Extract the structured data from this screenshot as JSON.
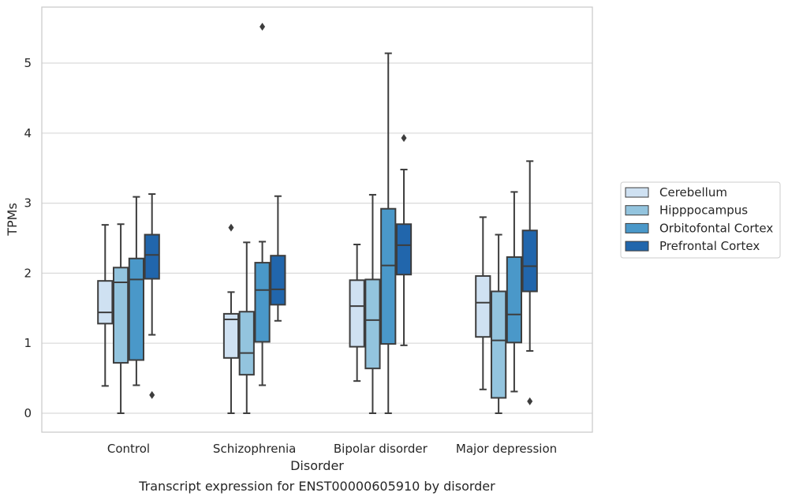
{
  "chart_data": {
    "type": "boxplot",
    "title": "Transcript expression for ENST00000605910 by disorder",
    "xlabel": "Disorder",
    "ylabel": "TPMs",
    "categories": [
      "Control",
      "Schizophrenia",
      "Bipolar disorder",
      "Major depression"
    ],
    "yticks": [
      "0",
      "1",
      "2",
      "3",
      "4",
      "5"
    ],
    "ylim": [
      -0.27,
      5.83
    ],
    "grid": "horizontal",
    "legend_position": "right",
    "series": [
      {
        "name": "Cerebellum",
        "color": "#cfe1f2",
        "boxes": [
          {
            "whisker_low": 0.39,
            "q1": 1.28,
            "median": 1.44,
            "q3": 1.89,
            "whisker_high": 2.69,
            "outliers": []
          },
          {
            "whisker_low": 0.0,
            "q1": 0.79,
            "median": 1.34,
            "q3": 1.42,
            "whisker_high": 1.73,
            "outliers": [
              2.65
            ]
          },
          {
            "whisker_low": 0.46,
            "q1": 0.95,
            "median": 1.53,
            "q3": 1.9,
            "whisker_high": 2.41,
            "outliers": []
          },
          {
            "whisker_low": 0.34,
            "q1": 1.09,
            "median": 1.58,
            "q3": 1.96,
            "whisker_high": 2.8,
            "outliers": []
          }
        ]
      },
      {
        "name": "Hipppocampus",
        "color": "#93c4de",
        "boxes": [
          {
            "whisker_low": 0.0,
            "q1": 0.72,
            "median": 1.87,
            "q3": 2.08,
            "whisker_high": 2.7,
            "outliers": []
          },
          {
            "whisker_low": 0.0,
            "q1": 0.55,
            "median": 0.86,
            "q3": 1.45,
            "whisker_high": 2.44,
            "outliers": []
          },
          {
            "whisker_low": 0.0,
            "q1": 0.64,
            "median": 1.33,
            "q3": 1.91,
            "whisker_high": 3.12,
            "outliers": []
          },
          {
            "whisker_low": 0.0,
            "q1": 0.22,
            "median": 1.04,
            "q3": 1.74,
            "whisker_high": 2.55,
            "outliers": []
          }
        ]
      },
      {
        "name": "Orbitofontal Cortex",
        "color": "#4a98c9",
        "boxes": [
          {
            "whisker_low": 0.4,
            "q1": 0.76,
            "median": 1.91,
            "q3": 2.21,
            "whisker_high": 3.09,
            "outliers": []
          },
          {
            "whisker_low": 0.4,
            "q1": 1.02,
            "median": 1.76,
            "q3": 2.15,
            "whisker_high": 2.45,
            "outliers": [
              5.52
            ]
          },
          {
            "whisker_low": 0.0,
            "q1": 0.99,
            "median": 2.11,
            "q3": 2.92,
            "whisker_high": 5.14,
            "outliers": []
          },
          {
            "whisker_low": 0.31,
            "q1": 1.01,
            "median": 1.41,
            "q3": 2.23,
            "whisker_high": 3.16,
            "outliers": []
          }
        ]
      },
      {
        "name": "Prefrontal Cortex",
        "color": "#2166ac",
        "boxes": [
          {
            "whisker_low": 1.12,
            "q1": 1.92,
            "median": 2.26,
            "q3": 2.55,
            "whisker_high": 3.13,
            "outliers": [
              0.26
            ]
          },
          {
            "whisker_low": 1.32,
            "q1": 1.55,
            "median": 1.77,
            "q3": 2.25,
            "whisker_high": 3.1,
            "outliers": []
          },
          {
            "whisker_low": 0.97,
            "q1": 1.98,
            "median": 2.4,
            "q3": 2.7,
            "whisker_high": 3.48,
            "outliers": [
              3.93
            ]
          },
          {
            "whisker_low": 0.89,
            "q1": 1.74,
            "median": 2.1,
            "q3": 2.61,
            "whisker_high": 3.6,
            "outliers": [
              0.17
            ]
          }
        ]
      }
    ]
  }
}
